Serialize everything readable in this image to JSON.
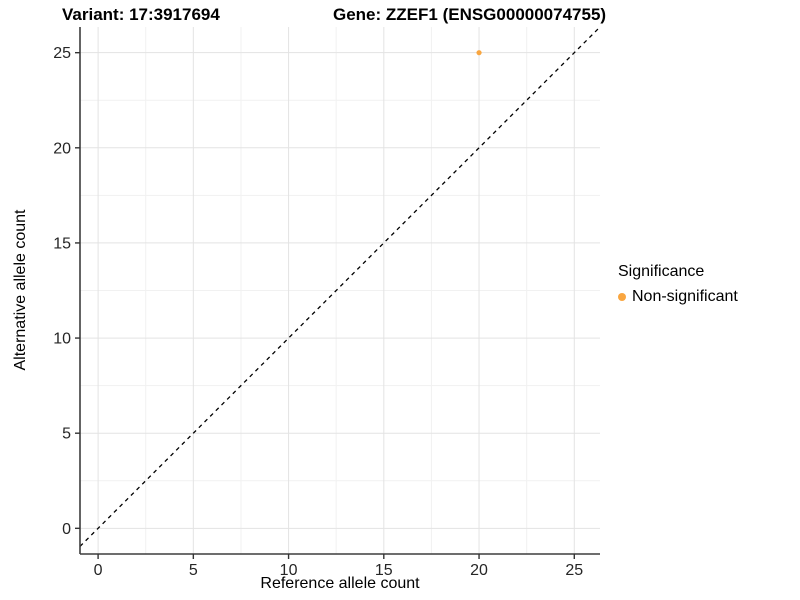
{
  "title": {
    "variant": "Variant: 17:3917694",
    "gene": "Gene: ZZEF1 (ENSG00000074755)"
  },
  "chart_data": {
    "type": "scatter",
    "title": "Variant: 17:3917694    Gene: ZZEF1 (ENSG00000074755)",
    "xlabel": "Reference allele count",
    "ylabel": "Alternative allele count",
    "xlim": [
      -0.95,
      26.35
    ],
    "ylim": [
      -1.35,
      26.35
    ],
    "x_ticks": [
      0,
      5,
      10,
      15,
      20,
      25
    ],
    "y_ticks": [
      0,
      5,
      10,
      15,
      20,
      25
    ],
    "x_minor_ticks": [
      2.5,
      7.5,
      12.5,
      17.5,
      22.5
    ],
    "y_minor_ticks": [
      2.5,
      7.5,
      12.5,
      17.5,
      22.5
    ],
    "grid": true,
    "points": [
      {
        "x": 20,
        "y": 25,
        "series": "Non-significant"
      }
    ],
    "reference_line": {
      "type": "abline",
      "slope": 1,
      "intercept": 0,
      "style": "dashed"
    },
    "legend": {
      "position": "right",
      "title": "Significance",
      "items": [
        {
          "label": "Non-significant",
          "color": "#F9A640"
        }
      ]
    },
    "colors": {
      "point": "#F9A640",
      "grid_major": "#E3E3E3",
      "grid_minor": "#F1F1F1",
      "axis_line": "#3d3d3d",
      "tick_mark": "#333333",
      "tick_label": "#262626",
      "dashed_line": "#000000"
    }
  }
}
